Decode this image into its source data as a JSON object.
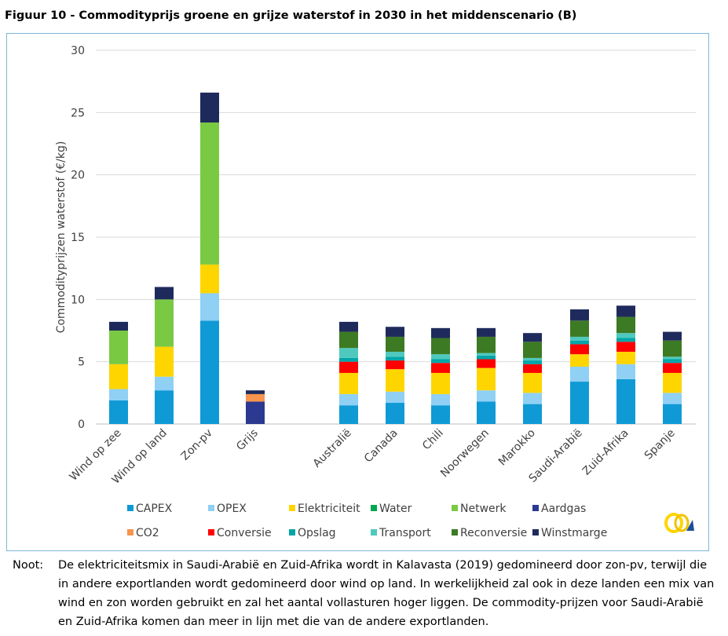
{
  "title": "Figuur 10 - Commodityprijs groene en grijze waterstof in 2030 in het middenscenario (B)",
  "note": {
    "label": "Noot:",
    "text": "De elektriciteitsmix in Saudi-Arabië en Zuid-Afrika wordt in Kalavasta (2019) gedomineerd door zon-pv, terwijl die in andere exportlanden wordt gedomineerd door wind op land. In werkelijkheid zal ook in deze landen een mix van wind en zon worden gebruikt en zal het aantal vollasturen hoger liggen. De commodity-prijzen voor Saudi-Arabië en Zuid-Afrika komen dan meer in lijn met die van de andere exportlanden."
  },
  "logo": "logo-icon",
  "chart_data": {
    "type": "bar",
    "stacked": true,
    "ylabel": "Commodityprijzen waterstof (€/kg)",
    "ylim": [
      0,
      30
    ],
    "yticks": [
      0,
      5,
      10,
      15,
      20,
      25,
      30
    ],
    "grid": true,
    "legend_position": "bottom",
    "categories": [
      "Wind op zee",
      "Wind op land",
      "Zon-pv",
      "Grijs",
      "Australië",
      "Canada",
      "Chili",
      "Noorwegen",
      "Marokko",
      "Saudi-Arabië",
      "Zuid-Afrika",
      "Spanje"
    ],
    "series": [
      {
        "name": "CAPEX",
        "color": "#0f9ad6",
        "values": [
          1.9,
          2.7,
          8.3,
          0,
          1.5,
          1.7,
          1.5,
          1.8,
          1.6,
          3.4,
          3.6,
          1.6
        ]
      },
      {
        "name": "OPEX",
        "color": "#8fd0f4",
        "values": [
          0.9,
          1.1,
          2.2,
          0,
          0.9,
          0.9,
          0.9,
          0.9,
          0.9,
          1.2,
          1.2,
          0.9
        ]
      },
      {
        "name": "Elektriciteit",
        "color": "#ffd500",
        "values": [
          2.0,
          2.4,
          2.3,
          0,
          1.7,
          1.8,
          1.7,
          1.8,
          1.6,
          1.0,
          1.0,
          1.6
        ]
      },
      {
        "name": "Water",
        "color": "#00a84f",
        "values": [
          0,
          0,
          0,
          0,
          0,
          0,
          0,
          0,
          0,
          0,
          0,
          0
        ]
      },
      {
        "name": "Netwerk",
        "color": "#7ac943",
        "values": [
          2.7,
          3.8,
          11.4,
          0,
          0,
          0,
          0,
          0,
          0,
          0,
          0,
          0
        ]
      },
      {
        "name": "Aardgas",
        "color": "#2b3990",
        "values": [
          0,
          0,
          0,
          1.8,
          0,
          0,
          0,
          0,
          0,
          0,
          0,
          0
        ]
      },
      {
        "name": "CO2",
        "color": "#f7944d",
        "values": [
          0,
          0,
          0,
          0.6,
          0,
          0,
          0,
          0,
          0,
          0,
          0,
          0
        ]
      },
      {
        "name": "Conversie",
        "color": "#ff0000",
        "values": [
          0,
          0,
          0,
          0,
          0.9,
          0.7,
          0.8,
          0.7,
          0.7,
          0.8,
          0.8,
          0.8
        ]
      },
      {
        "name": "Opslag",
        "color": "#00a5a8",
        "values": [
          0,
          0,
          0,
          0,
          0.3,
          0.3,
          0.3,
          0.3,
          0.3,
          0.3,
          0.3,
          0.3
        ]
      },
      {
        "name": "Transport",
        "color": "#4fc9be",
        "values": [
          0,
          0,
          0,
          0,
          0.8,
          0.4,
          0.4,
          0.2,
          0.2,
          0.3,
          0.4,
          0.2
        ]
      },
      {
        "name": "Reconversie",
        "color": "#3d7a24",
        "values": [
          0,
          0,
          0,
          0,
          1.3,
          1.2,
          1.3,
          1.3,
          1.3,
          1.3,
          1.3,
          1.3
        ]
      },
      {
        "name": "Winstmarge",
        "color": "#1f2a5c",
        "values": [
          0.7,
          1.0,
          2.4,
          0.3,
          0.8,
          0.8,
          0.8,
          0.7,
          0.7,
          0.9,
          0.9,
          0.7
        ]
      }
    ]
  }
}
